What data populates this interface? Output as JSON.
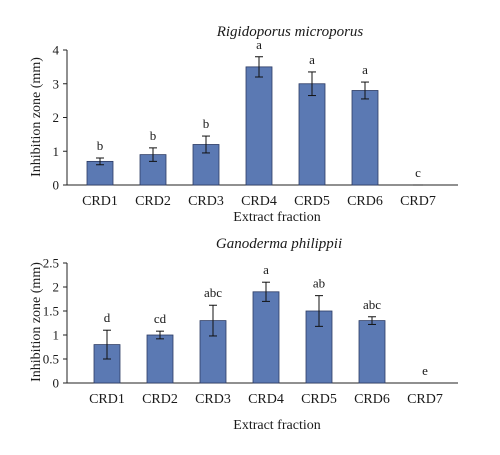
{
  "colors": {
    "bar": "#5b79b3"
  },
  "chart_data": [
    {
      "type": "bar",
      "title": "Rigidoporus microporus",
      "xlabel": "Extract fraction",
      "ylabel": "Inhibition zone (mm)",
      "ylim": [
        0,
        4
      ],
      "yticks": [
        "0",
        "1",
        "2",
        "3",
        "4"
      ],
      "categories": [
        "CRD1",
        "CRD2",
        "CRD3",
        "CRD4",
        "CRD5",
        "CRD6",
        "CRD7"
      ],
      "values": [
        0.7,
        0.9,
        1.2,
        3.5,
        3.0,
        2.8,
        0.0
      ],
      "errors": [
        0.1,
        0.2,
        0.25,
        0.3,
        0.35,
        0.25,
        0.0
      ],
      "significance": [
        "b",
        "b",
        "b",
        "a",
        "a",
        "a",
        "c"
      ],
      "grid": false
    },
    {
      "type": "bar",
      "title": "Ganoderma philippii",
      "xlabel": "Extract fraction",
      "ylabel": "Inhibition zone (mm)",
      "ylim": [
        0,
        2.5
      ],
      "yticks": [
        "0",
        "0.5",
        "1",
        "1.5",
        "2",
        "2.5"
      ],
      "categories": [
        "CRD1",
        "CRD2",
        "CRD3",
        "CRD4",
        "CRD5",
        "CRD6",
        "CRD7"
      ],
      "values": [
        0.8,
        1.0,
        1.3,
        1.9,
        1.5,
        1.3,
        0.0
      ],
      "errors": [
        0.3,
        0.08,
        0.32,
        0.2,
        0.32,
        0.08,
        0.0
      ],
      "significance": [
        "d",
        "cd",
        "abc",
        "a",
        "ab",
        "abc",
        "e"
      ],
      "grid": false
    }
  ]
}
